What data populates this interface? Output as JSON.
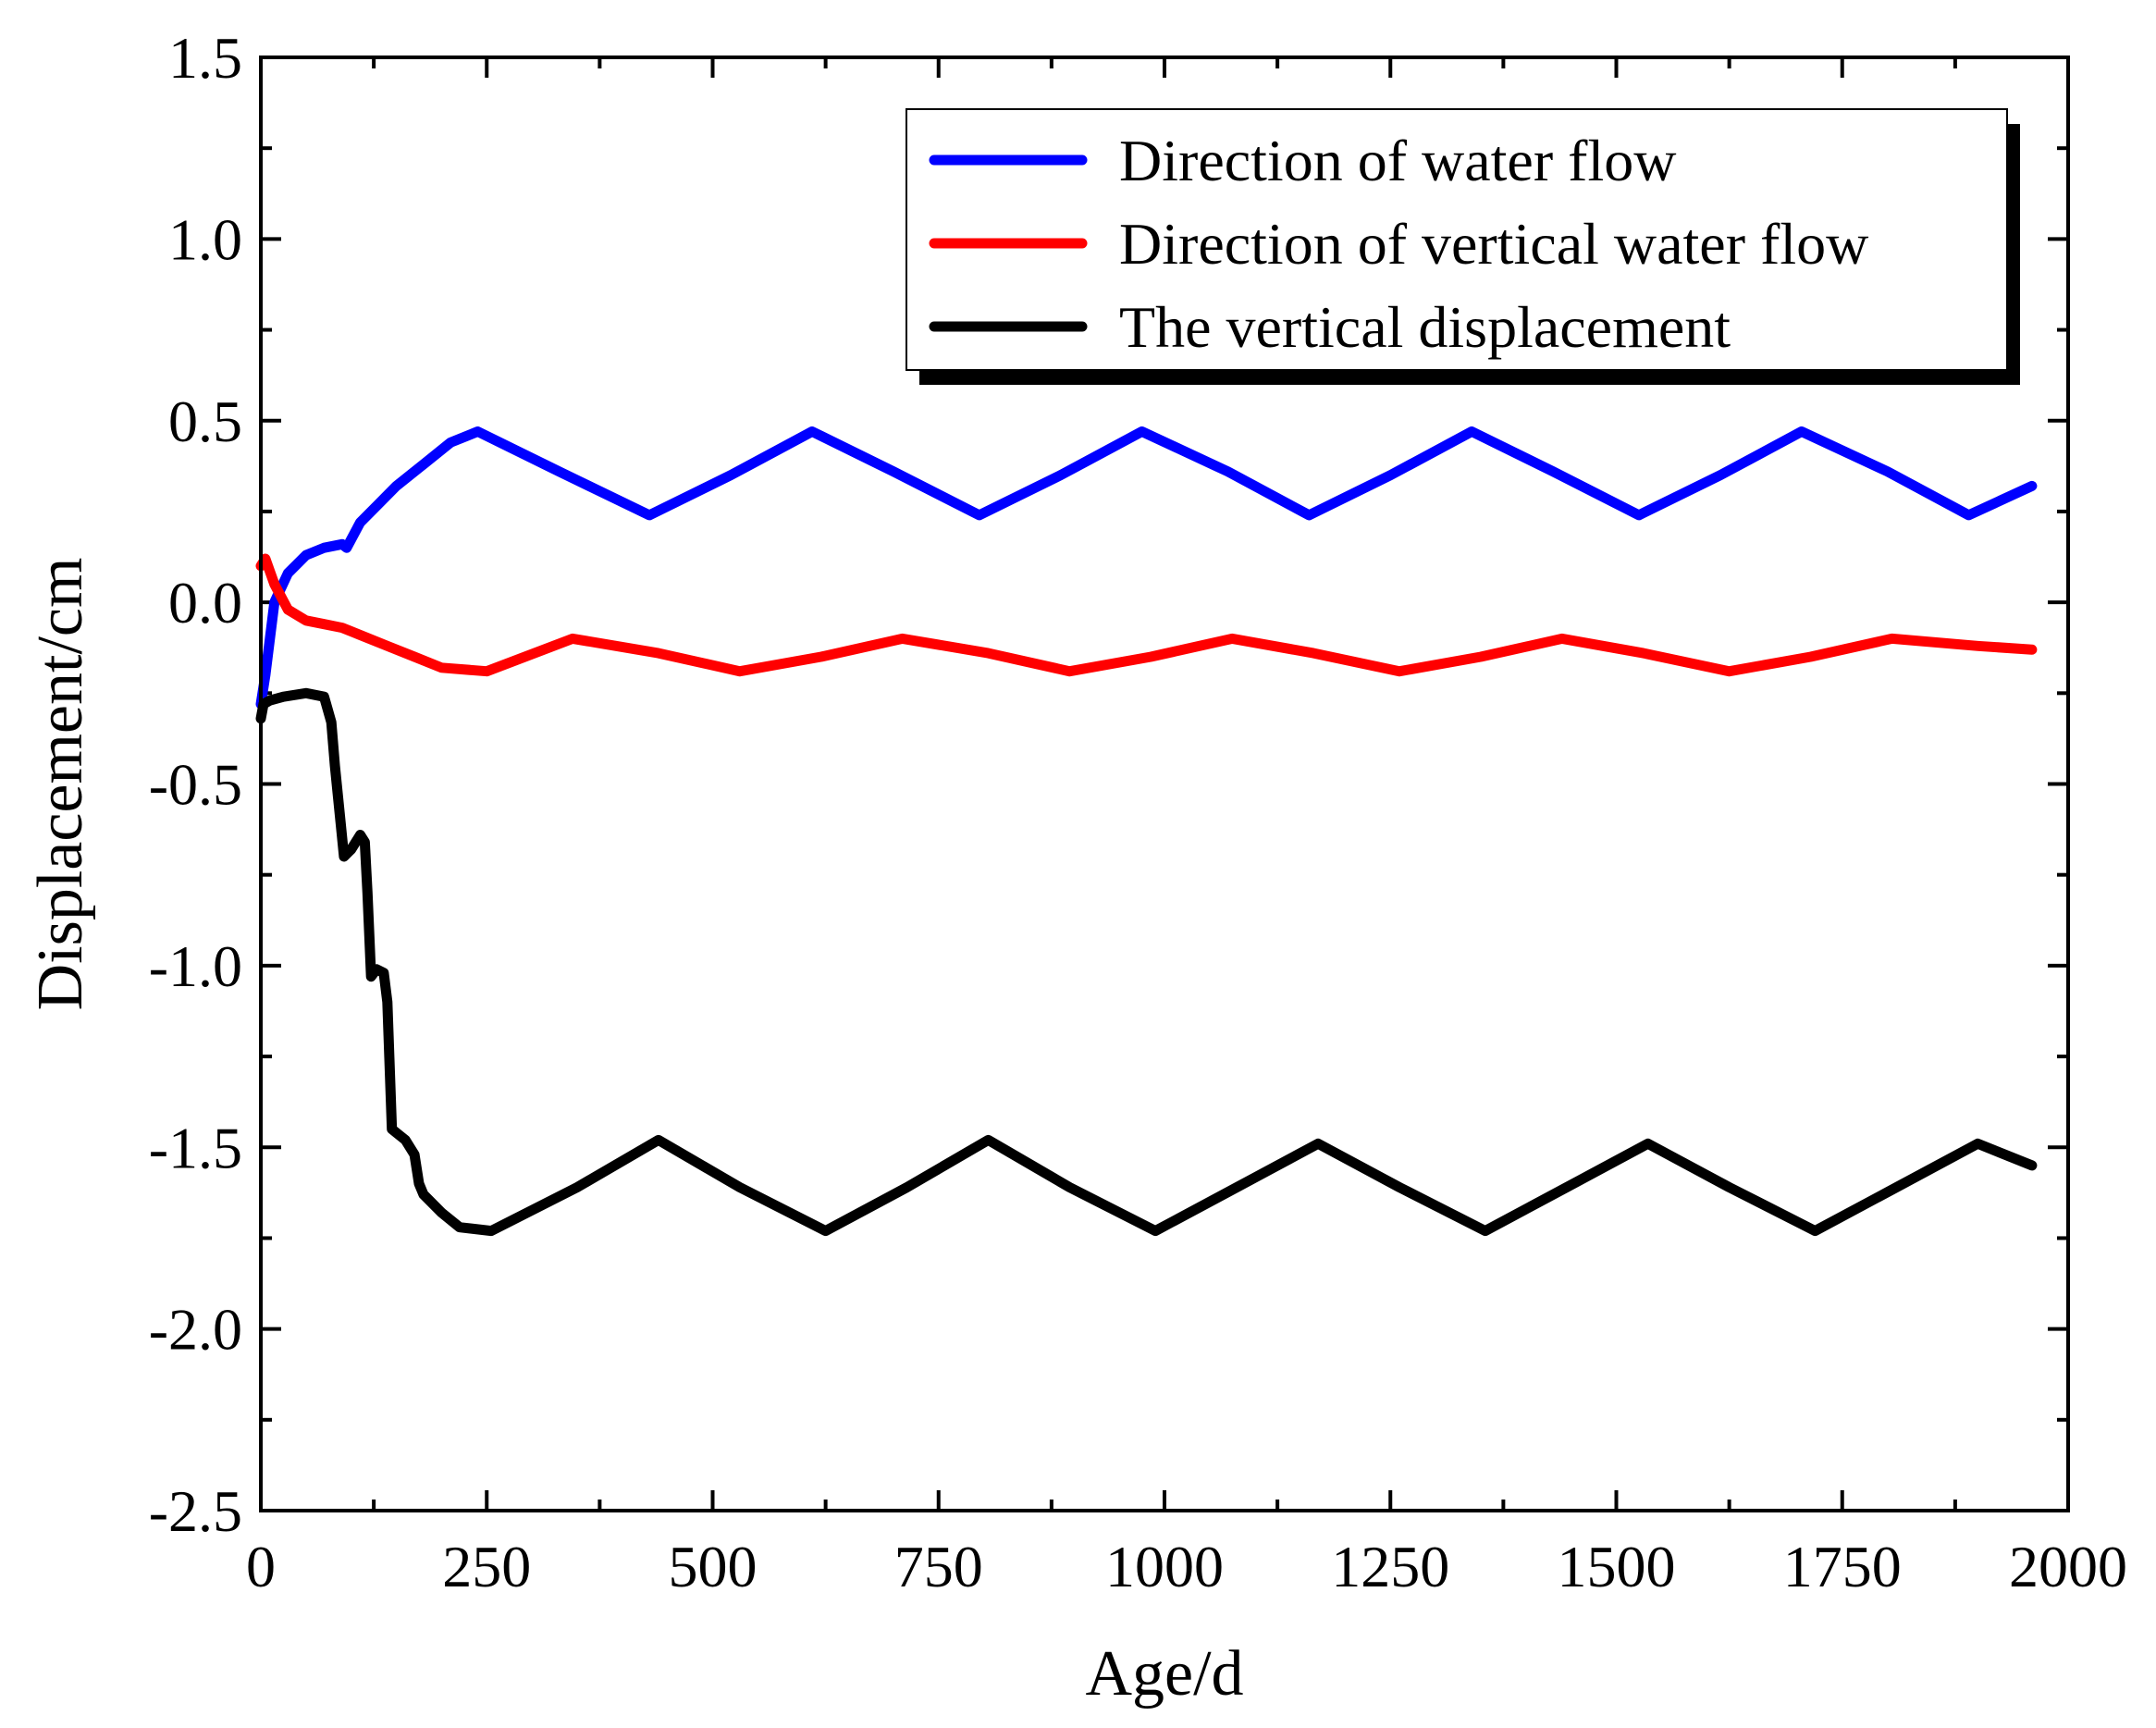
{
  "chart_data": {
    "type": "line",
    "title": "",
    "xlabel": "Age/d",
    "ylabel": "Displacement/cm",
    "xlim": [
      0,
      2000
    ],
    "ylim": [
      -2.5,
      1.5
    ],
    "xticks": [
      0,
      250,
      500,
      750,
      1000,
      1250,
      1500,
      1750,
      2000
    ],
    "xtick_labels": [
      "0",
      "250",
      "500",
      "750",
      "1000",
      "1250",
      "1500",
      "1750",
      "2000"
    ],
    "yticks": [
      1.5,
      1.0,
      0.5,
      0.0,
      -0.5,
      -1.0,
      -1.5,
      -2.0,
      -2.5
    ],
    "ytick_labels": [
      "1.5",
      "1.0",
      "0.5",
      "0.0",
      "-0.5",
      "-1.0",
      "-1.5",
      "-2.0",
      "-2.5"
    ],
    "grid": false,
    "legend_position": "top-right",
    "series": [
      {
        "name": "Direction of water flow",
        "color": "#0000ff",
        "x": [
          0,
          5,
          15,
          30,
          50,
          70,
          90,
          95,
          110,
          130,
          150,
          180,
          210,
          240,
          330,
          430,
          520,
          610,
          700,
          795,
          885,
          975,
          1070,
          1160,
          1250,
          1340,
          1430,
          1525,
          1615,
          1705,
          1800,
          1890,
          1960
        ],
        "y": [
          -0.28,
          -0.2,
          0.0,
          0.08,
          0.13,
          0.15,
          0.16,
          0.15,
          0.22,
          0.27,
          0.32,
          0.38,
          0.44,
          0.47,
          0.36,
          0.24,
          0.35,
          0.47,
          0.36,
          0.24,
          0.35,
          0.47,
          0.36,
          0.24,
          0.35,
          0.47,
          0.36,
          0.24,
          0.35,
          0.47,
          0.36,
          0.24,
          0.32
        ]
      },
      {
        "name": "Direction of vertical water flow",
        "color": "#ff0000",
        "x": [
          0,
          5,
          15,
          30,
          50,
          70,
          90,
          110,
          140,
          170,
          200,
          250,
          345,
          440,
          530,
          620,
          710,
          805,
          895,
          985,
          1075,
          1165,
          1260,
          1350,
          1440,
          1530,
          1625,
          1715,
          1805,
          1900,
          1960
        ],
        "y": [
          0.1,
          0.12,
          0.05,
          -0.02,
          -0.05,
          -0.06,
          -0.07,
          -0.09,
          -0.12,
          -0.15,
          -0.18,
          -0.19,
          -0.1,
          -0.14,
          -0.19,
          -0.15,
          -0.1,
          -0.14,
          -0.19,
          -0.15,
          -0.1,
          -0.14,
          -0.19,
          -0.15,
          -0.1,
          -0.14,
          -0.19,
          -0.15,
          -0.1,
          -0.12,
          -0.13
        ]
      },
      {
        "name": "The vertical displacement",
        "color": "#000000",
        "x": [
          0,
          3,
          10,
          25,
          50,
          70,
          78,
          82,
          88,
          92,
          100,
          110,
          115,
          118,
          122,
          128,
          136,
          140,
          145,
          150,
          160,
          170,
          175,
          180,
          200,
          220,
          255,
          350,
          440,
          530,
          625,
          715,
          805,
          895,
          990,
          1080,
          1170,
          1260,
          1355,
          1445,
          1535,
          1625,
          1720,
          1810,
          1900,
          1960
        ],
        "y": [
          -0.32,
          -0.28,
          -0.27,
          -0.26,
          -0.25,
          -0.26,
          -0.33,
          -0.45,
          -0.6,
          -0.7,
          -0.68,
          -0.64,
          -0.66,
          -0.8,
          -1.03,
          -1.01,
          -1.02,
          -1.1,
          -1.45,
          -1.46,
          -1.48,
          -1.52,
          -1.6,
          -1.63,
          -1.68,
          -1.72,
          -1.73,
          -1.61,
          -1.48,
          -1.61,
          -1.73,
          -1.61,
          -1.48,
          -1.61,
          -1.73,
          -1.61,
          -1.49,
          -1.61,
          -1.73,
          -1.61,
          -1.49,
          -1.61,
          -1.73,
          -1.61,
          -1.49,
          -1.55
        ]
      }
    ]
  }
}
